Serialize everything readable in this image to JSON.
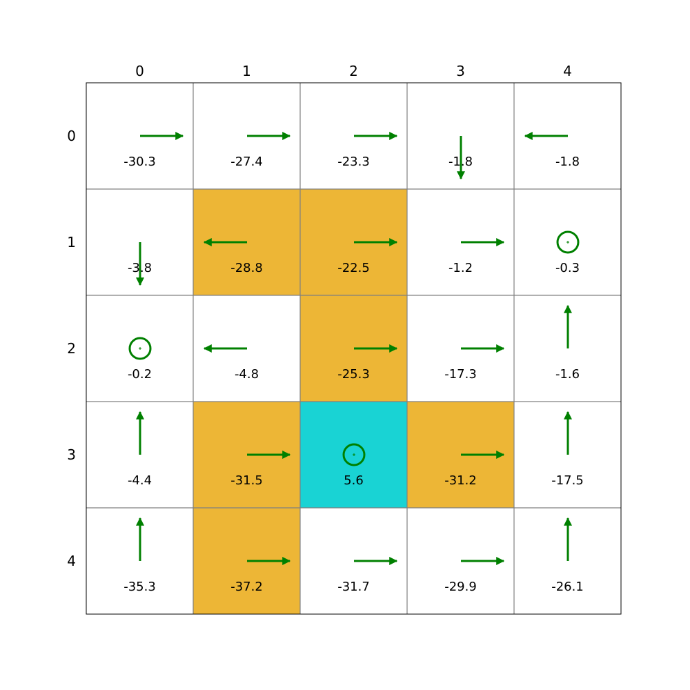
{
  "grid": {
    "rows": 5,
    "cols": 5,
    "col_labels": [
      "0",
      "1",
      "2",
      "3",
      "4"
    ],
    "row_labels": [
      "0",
      "1",
      "2",
      "3",
      "4"
    ],
    "colors": {
      "empty": "#ffffff",
      "hazard": "#edb636",
      "goal": "#19d3d4",
      "gridline": "#808080",
      "border": "#000000",
      "arrow": "#008000"
    },
    "cells": [
      [
        {
          "type": "empty",
          "action": "right",
          "value": "-30.3"
        },
        {
          "type": "empty",
          "action": "right",
          "value": "-27.4"
        },
        {
          "type": "empty",
          "action": "right",
          "value": "-23.3"
        },
        {
          "type": "empty",
          "action": "down",
          "value": "-1.8"
        },
        {
          "type": "empty",
          "action": "left",
          "value": "-1.8"
        }
      ],
      [
        {
          "type": "empty",
          "action": "down",
          "value": "-3.8"
        },
        {
          "type": "hazard",
          "action": "left",
          "value": "-28.8"
        },
        {
          "type": "hazard",
          "action": "right",
          "value": "-22.5"
        },
        {
          "type": "empty",
          "action": "right",
          "value": "-1.2"
        },
        {
          "type": "empty",
          "action": "stay",
          "value": "-0.3"
        }
      ],
      [
        {
          "type": "empty",
          "action": "stay",
          "value": "-0.2"
        },
        {
          "type": "empty",
          "action": "left",
          "value": "-4.8"
        },
        {
          "type": "hazard",
          "action": "right",
          "value": "-25.3"
        },
        {
          "type": "empty",
          "action": "right",
          "value": "-17.3"
        },
        {
          "type": "empty",
          "action": "up",
          "value": "-1.6"
        }
      ],
      [
        {
          "type": "empty",
          "action": "up",
          "value": "-4.4"
        },
        {
          "type": "hazard",
          "action": "right",
          "value": "-31.5"
        },
        {
          "type": "goal",
          "action": "stay",
          "value": "5.6"
        },
        {
          "type": "hazard",
          "action": "right",
          "value": "-31.2"
        },
        {
          "type": "empty",
          "action": "up",
          "value": "-17.5"
        }
      ],
      [
        {
          "type": "empty",
          "action": "up",
          "value": "-35.3"
        },
        {
          "type": "hazard",
          "action": "right",
          "value": "-37.2"
        },
        {
          "type": "empty",
          "action": "right",
          "value": "-31.7"
        },
        {
          "type": "empty",
          "action": "right",
          "value": "-29.9"
        },
        {
          "type": "empty",
          "action": "up",
          "value": "-26.1"
        }
      ]
    ]
  }
}
